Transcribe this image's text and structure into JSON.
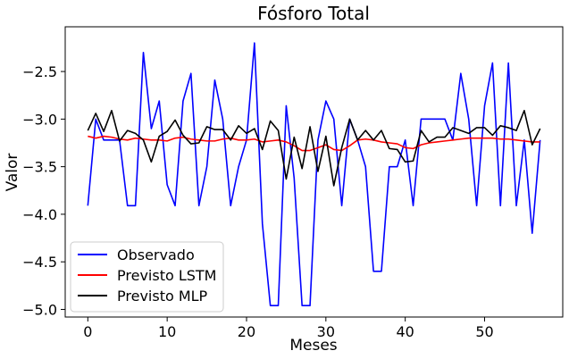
{
  "chart_data": {
    "type": "line",
    "title": "Fósforo Total",
    "xlabel": "Meses",
    "ylabel": "Valor",
    "xlim": [
      -2.85,
      59.85
    ],
    "ylim": [
      -5.08,
      -2.03
    ],
    "xticks": [
      0,
      10,
      20,
      30,
      40,
      50
    ],
    "yticks": [
      -2.5,
      -3.0,
      -3.5,
      -4.0,
      -4.5,
      -5.0
    ],
    "ytick_labels": [
      "−2.5",
      "−3.0",
      "−3.5",
      "−4.0",
      "−4.5",
      "−5.0"
    ],
    "grid": false,
    "legend_position": "lower left",
    "series": [
      {
        "name": "Observado",
        "color": "#0000ff",
        "x": [
          0,
          1,
          2,
          3,
          4,
          5,
          6,
          7,
          8,
          9,
          10,
          11,
          12,
          13,
          14,
          15,
          16,
          17,
          18,
          19,
          20,
          21,
          22,
          23,
          24,
          25,
          26,
          27,
          28,
          29,
          30,
          31,
          32,
          33,
          34,
          35,
          36,
          37,
          38,
          39,
          40,
          41,
          42,
          43,
          44,
          45,
          46,
          47,
          48,
          49,
          50,
          51,
          52,
          53,
          54,
          55,
          56,
          57
        ],
        "values": [
          -3.91,
          -3.0,
          -3.22,
          -3.22,
          -3.22,
          -3.91,
          -3.91,
          -2.3,
          -3.1,
          -2.81,
          -3.69,
          -3.91,
          -2.81,
          -2.52,
          -3.91,
          -3.5,
          -2.59,
          -3.0,
          -3.91,
          -3.5,
          -3.22,
          -2.2,
          -4.1,
          -4.96,
          -4.96,
          -2.86,
          -3.62,
          -4.96,
          -4.96,
          -3.22,
          -2.81,
          -3.0,
          -3.91,
          -3.0,
          -3.22,
          -3.5,
          -4.6,
          -4.6,
          -3.5,
          -3.5,
          -3.22,
          -3.91,
          -3.0,
          -3.0,
          -3.0,
          -3.0,
          -3.22,
          -2.52,
          -3.0,
          -3.91,
          -2.86,
          -2.41,
          -3.91,
          -2.41,
          -3.91,
          -3.22,
          -4.2,
          -3.22
        ]
      },
      {
        "name": "Previsto LSTM",
        "color": "#ff0000",
        "x": [
          0,
          1,
          2,
          3,
          4,
          5,
          6,
          7,
          8,
          9,
          10,
          11,
          12,
          13,
          14,
          15,
          16,
          17,
          18,
          19,
          20,
          21,
          22,
          23,
          24,
          25,
          26,
          27,
          28,
          29,
          30,
          31,
          32,
          33,
          34,
          35,
          36,
          37,
          38,
          39,
          40,
          41,
          42,
          43,
          44,
          45,
          46,
          47,
          48,
          49,
          50,
          51,
          52,
          53,
          54,
          55,
          56,
          57
        ],
        "values": [
          -3.18,
          -3.2,
          -3.18,
          -3.19,
          -3.21,
          -3.22,
          -3.2,
          -3.21,
          -3.22,
          -3.22,
          -3.23,
          -3.2,
          -3.19,
          -3.21,
          -3.22,
          -3.23,
          -3.23,
          -3.21,
          -3.2,
          -3.22,
          -3.22,
          -3.21,
          -3.24,
          -3.23,
          -3.22,
          -3.24,
          -3.28,
          -3.33,
          -3.33,
          -3.3,
          -3.27,
          -3.32,
          -3.33,
          -3.28,
          -3.22,
          -3.21,
          -3.22,
          -3.24,
          -3.25,
          -3.26,
          -3.3,
          -3.31,
          -3.27,
          -3.25,
          -3.24,
          -3.23,
          -3.22,
          -3.21,
          -3.2,
          -3.2,
          -3.2,
          -3.2,
          -3.21,
          -3.21,
          -3.22,
          -3.23,
          -3.24,
          -3.24
        ]
      },
      {
        "name": "Previsto MLP",
        "color": "#000000",
        "x": [
          0,
          1,
          2,
          3,
          4,
          5,
          6,
          7,
          8,
          9,
          10,
          11,
          12,
          13,
          14,
          15,
          16,
          17,
          18,
          19,
          20,
          21,
          22,
          23,
          24,
          25,
          26,
          27,
          28,
          29,
          30,
          31,
          32,
          33,
          34,
          35,
          36,
          37,
          38,
          39,
          40,
          41,
          42,
          43,
          44,
          45,
          46,
          47,
          48,
          49,
          50,
          51,
          52,
          53,
          54,
          55,
          56,
          57
        ],
        "values": [
          -3.12,
          -2.94,
          -3.13,
          -2.91,
          -3.23,
          -3.12,
          -3.15,
          -3.22,
          -3.45,
          -3.18,
          -3.13,
          -3.01,
          -3.17,
          -3.26,
          -3.25,
          -3.08,
          -3.11,
          -3.11,
          -3.22,
          -3.07,
          -3.15,
          -3.1,
          -3.32,
          -3.02,
          -3.12,
          -3.63,
          -3.19,
          -3.52,
          -3.08,
          -3.55,
          -3.18,
          -3.7,
          -3.3,
          -3.0,
          -3.22,
          -3.12,
          -3.22,
          -3.12,
          -3.31,
          -3.32,
          -3.45,
          -3.44,
          -3.12,
          -3.24,
          -3.19,
          -3.19,
          -3.09,
          -3.12,
          -3.15,
          -3.09,
          -3.09,
          -3.17,
          -3.07,
          -3.09,
          -3.12,
          -2.91,
          -3.27,
          -3.1
        ]
      }
    ]
  }
}
